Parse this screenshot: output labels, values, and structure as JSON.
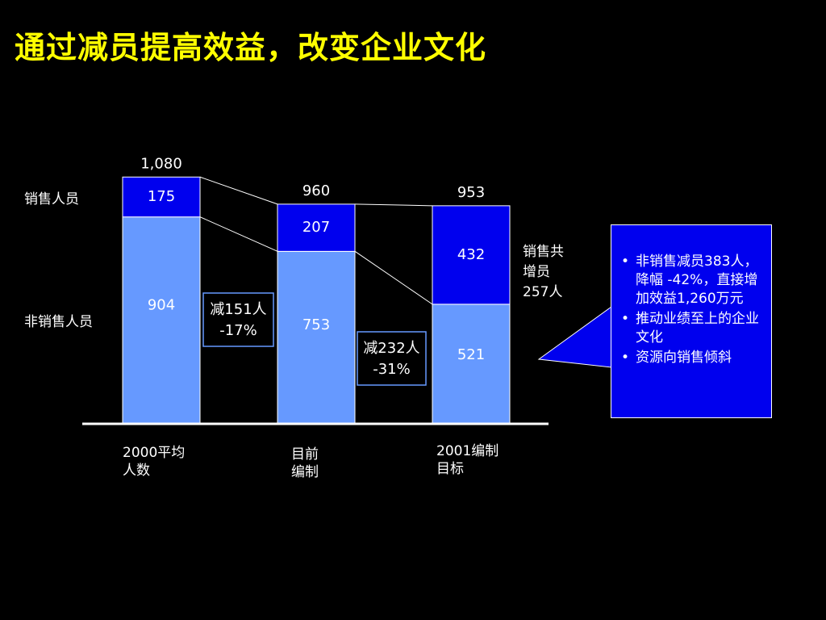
{
  "title": "通过减员提高效益，改变企业文化",
  "chart_data": {
    "type": "bar",
    "stacked": true,
    "categories": [
      "2000平均\n人数",
      "目前\n编制",
      "2001编制\n目标"
    ],
    "series": [
      {
        "name": "非销售人员",
        "values": [
          904,
          753,
          521
        ],
        "color": "#6699ff"
      },
      {
        "name": "销售人员",
        "values": [
          175,
          207,
          432
        ],
        "color": "#0000ee"
      }
    ],
    "totals": [
      "1,080",
      "960",
      "953"
    ],
    "segment_labels": {
      "bottom": [
        "904",
        "753",
        "521"
      ],
      "top": [
        "175",
        "207",
        "432"
      ]
    },
    "ylim": [
      0,
      1080
    ],
    "legend_left": {
      "sales": "销售人员",
      "non_sales": "非销售人员"
    },
    "reductions": [
      {
        "line1": "减151人",
        "line2": "-17%"
      },
      {
        "line1": "减232人",
        "line2": "-31%"
      }
    ],
    "right_annotation": [
      "销售共",
      "增员",
      "257人"
    ],
    "grid": false,
    "axis_color": "#ffffff"
  },
  "category_labels": [
    [
      "2000平均",
      "人数"
    ],
    [
      "目前",
      "编制"
    ],
    [
      "2001编制",
      "目标"
    ]
  ],
  "notes": [
    "非销售减员383人，降幅 -42%，直接增加效益1,260万元",
    "推动业绩至上的企业文化",
    "资源向销售倾斜"
  ]
}
